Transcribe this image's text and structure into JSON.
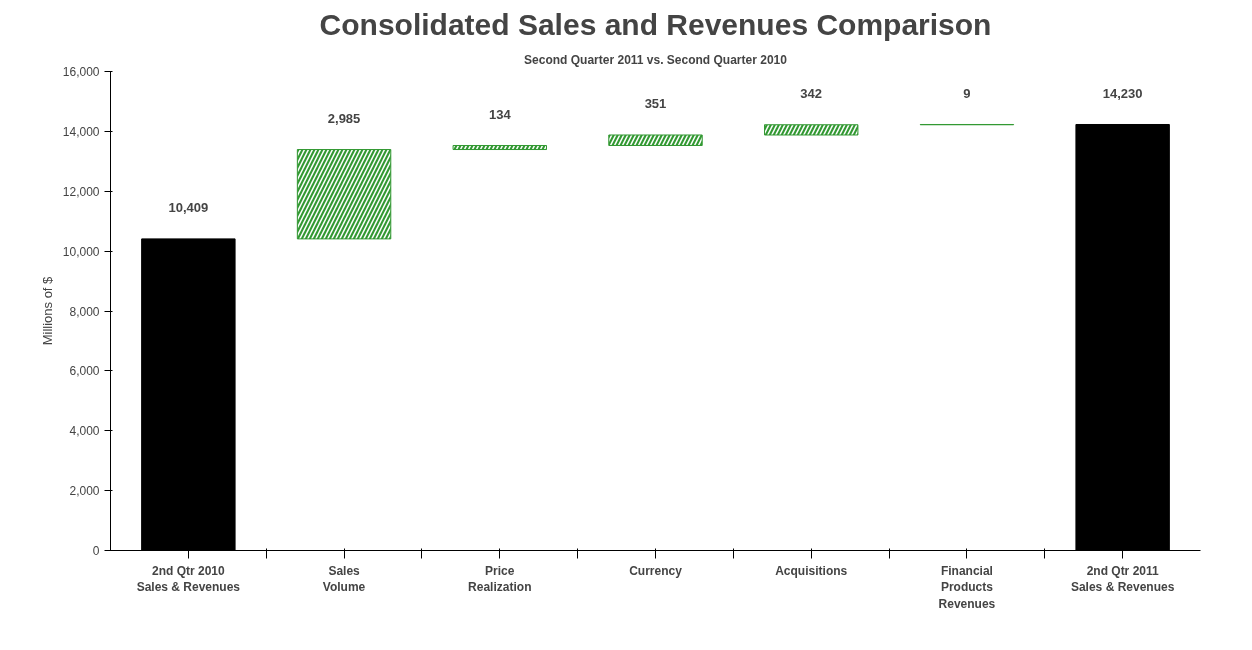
{
  "chart_data": {
    "type": "bar",
    "title": "Consolidated Sales and Revenues Comparison",
    "subtitle": "Second Quarter 2011 vs. Second Quarter 2010",
    "ylabel": "Millions of $",
    "categories": [
      "2nd Qtr 2010\nSales & Revenues",
      "Sales\nVolume",
      "Price\nRealization",
      "Currency",
      "Acquisitions",
      "Financial\nProducts\nRevenues",
      "2nd Qtr 2011\nSales & Revenues"
    ],
    "values": [
      10409,
      2985,
      134,
      351,
      342,
      9,
      14230
    ],
    "base": [
      0,
      10409,
      13394,
      13528,
      13879,
      14221,
      0
    ],
    "colors": [
      "#000000",
      "#339933",
      "#339933",
      "#339933",
      "#339933",
      "#339933",
      "#000000"
    ],
    "value_labels": [
      "10,409",
      "2,985",
      "134",
      "351",
      "342",
      "9",
      "14,230"
    ],
    "ylim": [
      0,
      16000
    ],
    "yticks": [
      {
        "value": 0,
        "label": "0"
      },
      {
        "value": 2000,
        "label": "2,000"
      },
      {
        "value": 4000,
        "label": "4,000"
      },
      {
        "value": 6000,
        "label": "6,000"
      },
      {
        "value": 8000,
        "label": "8,000"
      },
      {
        "value": 10000,
        "label": "10,000"
      },
      {
        "value": 12000,
        "label": "12,000"
      },
      {
        "value": 14000,
        "label": "14,000"
      },
      {
        "value": 16000,
        "label": "16,000"
      }
    ],
    "grid": false
  }
}
